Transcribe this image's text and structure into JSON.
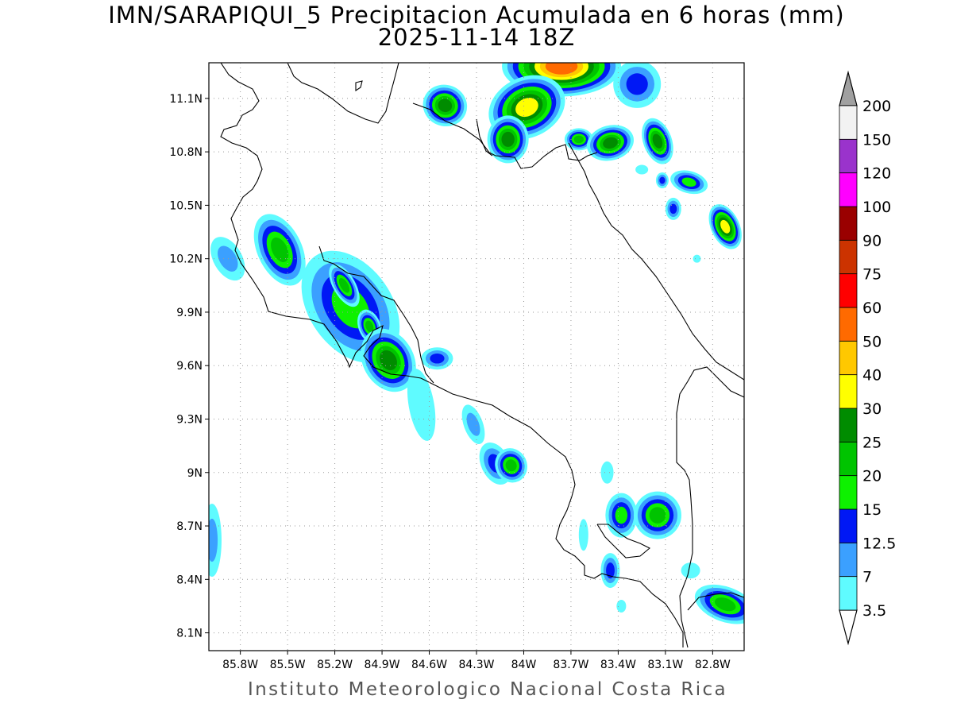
{
  "title": {
    "line1": "IMN/SARAPIQUI_5 Precipitacion Acumulada en 6 horas (mm)",
    "line2": "2025-11-14 18Z"
  },
  "footer": "Instituto Meteorologico Nacional Costa Rica",
  "map": {
    "projection": "lat-lon",
    "lon_range": [
      -86.0,
      -82.6
    ],
    "lat_range": [
      8.0,
      11.3
    ],
    "grid": "dotted",
    "lat_ticks": [
      {
        "value": 11.1,
        "label": "11.1N"
      },
      {
        "value": 10.8,
        "label": "10.8N"
      },
      {
        "value": 10.5,
        "label": "10.5N"
      },
      {
        "value": 10.2,
        "label": "10.2N"
      },
      {
        "value": 9.9,
        "label": "9.9N"
      },
      {
        "value": 9.6,
        "label": "9.6N"
      },
      {
        "value": 9.3,
        "label": "9.3N"
      },
      {
        "value": 9.0,
        "label": "9N"
      },
      {
        "value": 8.7,
        "label": "8.7N"
      },
      {
        "value": 8.4,
        "label": "8.4N"
      },
      {
        "value": 8.1,
        "label": "8.1N"
      }
    ],
    "lon_ticks": [
      {
        "value": -85.8,
        "label": "85.8W"
      },
      {
        "value": -85.5,
        "label": "85.5W"
      },
      {
        "value": -85.2,
        "label": "85.2W"
      },
      {
        "value": -84.9,
        "label": "84.9W"
      },
      {
        "value": -84.6,
        "label": "84.6W"
      },
      {
        "value": -84.3,
        "label": "84.3W"
      },
      {
        "value": -84.0,
        "label": "84W"
      },
      {
        "value": -83.7,
        "label": "83.7W"
      },
      {
        "value": -83.4,
        "label": "83.4W"
      },
      {
        "value": -83.1,
        "label": "83.1W"
      },
      {
        "value": -82.8,
        "label": "82.8W"
      }
    ]
  },
  "colorbar": {
    "units": "mm",
    "extend": "both",
    "under_color": "#ffffff",
    "over_color": "#a0a0a0",
    "bins": [
      {
        "label": "3.5",
        "color": "#5ffbff"
      },
      {
        "label": "7",
        "color": "#3ba0ff"
      },
      {
        "label": "12.5",
        "color": "#0018f5"
      },
      {
        "label": "15",
        "color": "#0ef100"
      },
      {
        "label": "20",
        "color": "#00c400"
      },
      {
        "label": "25",
        "color": "#008c00"
      },
      {
        "label": "30",
        "color": "#ffff00"
      },
      {
        "label": "40",
        "color": "#ffc800"
      },
      {
        "label": "50",
        "color": "#ff6a00"
      },
      {
        "label": "60",
        "color": "#ff0000"
      },
      {
        "label": "75",
        "color": "#cc3300"
      },
      {
        "label": "90",
        "color": "#9a0000"
      },
      {
        "label": "100",
        "color": "#ff00ff"
      },
      {
        "label": "120",
        "color": "#9a33cc"
      },
      {
        "label": "150",
        "color": "#f2f2f2"
      },
      {
        "label": "200",
        "color": null
      }
    ]
  },
  "precip_cells": [
    {
      "lon": -83.76,
      "lat": 11.28,
      "rx": 75,
      "ry": 38,
      "rot": 0,
      "max_level": 9
    },
    {
      "lon": -83.98,
      "lat": 11.05,
      "rx": 50,
      "ry": 38,
      "rot": -25,
      "max_level": 7
    },
    {
      "lon": -84.5,
      "lat": 11.06,
      "rx": 28,
      "ry": 26,
      "rot": 20,
      "max_level": 6
    },
    {
      "lon": -84.1,
      "lat": 10.87,
      "rx": 26,
      "ry": 30,
      "rot": 0,
      "max_level": 6
    },
    {
      "lon": -83.65,
      "lat": 10.87,
      "rx": 18,
      "ry": 14,
      "rot": 0,
      "max_level": 5
    },
    {
      "lon": -83.45,
      "lat": 10.85,
      "rx": 30,
      "ry": 22,
      "rot": -15,
      "max_level": 6
    },
    {
      "lon": -83.15,
      "lat": 10.86,
      "rx": 18,
      "ry": 30,
      "rot": -20,
      "max_level": 6
    },
    {
      "lon": -83.28,
      "lat": 11.18,
      "rx": 30,
      "ry": 30,
      "rot": 0,
      "max_level": 3
    },
    {
      "lon": -82.95,
      "lat": 10.63,
      "rx": 24,
      "ry": 14,
      "rot": 15,
      "max_level": 4
    },
    {
      "lon": -83.05,
      "lat": 10.48,
      "rx": 10,
      "ry": 14,
      "rot": 0,
      "max_level": 3
    },
    {
      "lon": -83.12,
      "lat": 10.64,
      "rx": 8,
      "ry": 10,
      "rot": 0,
      "max_level": 3
    },
    {
      "lon": -82.72,
      "lat": 10.38,
      "rx": 18,
      "ry": 30,
      "rot": -25,
      "max_level": 7
    },
    {
      "lon": -85.55,
      "lat": 10.25,
      "rx": 28,
      "ry": 48,
      "rot": -25,
      "max_level": 5
    },
    {
      "lon": -85.88,
      "lat": 10.2,
      "rx": 18,
      "ry": 30,
      "rot": -30,
      "max_level": 2
    },
    {
      "lon": -85.1,
      "lat": 9.93,
      "rx": 52,
      "ry": 78,
      "rot": -35,
      "max_level": 4
    },
    {
      "lon": -85.14,
      "lat": 10.05,
      "rx": 14,
      "ry": 30,
      "rot": -30,
      "max_level": 5
    },
    {
      "lon": -84.98,
      "lat": 9.82,
      "rx": 14,
      "ry": 22,
      "rot": -20,
      "max_level": 5
    },
    {
      "lon": -84.86,
      "lat": 9.63,
      "rx": 32,
      "ry": 42,
      "rot": -30,
      "max_level": 6
    },
    {
      "lon": -84.55,
      "lat": 9.64,
      "rx": 20,
      "ry": 14,
      "rot": 0,
      "max_level": 3
    },
    {
      "lon": -84.65,
      "lat": 9.38,
      "rx": 16,
      "ry": 46,
      "rot": -10,
      "max_level": 1
    },
    {
      "lon": -84.32,
      "lat": 9.27,
      "rx": 12,
      "ry": 26,
      "rot": -20,
      "max_level": 2
    },
    {
      "lon": -84.18,
      "lat": 9.05,
      "rx": 18,
      "ry": 28,
      "rot": -25,
      "max_level": 3
    },
    {
      "lon": -84.08,
      "lat": 9.04,
      "rx": 20,
      "ry": 22,
      "rot": -25,
      "max_level": 5
    },
    {
      "lon": -83.38,
      "lat": 8.76,
      "rx": 20,
      "ry": 28,
      "rot": 0,
      "max_level": 4
    },
    {
      "lon": -83.15,
      "lat": 8.76,
      "rx": 30,
      "ry": 30,
      "rot": 0,
      "max_level": 5
    },
    {
      "lon": -83.45,
      "lat": 8.45,
      "rx": 12,
      "ry": 22,
      "rot": 0,
      "max_level": 3
    },
    {
      "lon": -85.98,
      "lat": 8.62,
      "rx": 12,
      "ry": 46,
      "rot": 0,
      "max_level": 2
    },
    {
      "lon": -82.72,
      "lat": 8.26,
      "rx": 40,
      "ry": 22,
      "rot": 20,
      "max_level": 5
    },
    {
      "lon": -82.94,
      "lat": 8.45,
      "rx": 12,
      "ry": 10,
      "rot": 0,
      "max_level": 1
    },
    {
      "lon": -83.62,
      "lat": 8.65,
      "rx": 6,
      "ry": 20,
      "rot": 0,
      "max_level": 1
    },
    {
      "lon": -83.47,
      "lat": 9.0,
      "rx": 8,
      "ry": 14,
      "rot": 0,
      "max_level": 1
    },
    {
      "lon": -83.38,
      "lat": 8.25,
      "rx": 6,
      "ry": 8,
      "rot": 0,
      "max_level": 1
    },
    {
      "lon": -82.9,
      "lat": 10.2,
      "rx": 5,
      "ry": 5,
      "rot": 0,
      "max_level": 1
    },
    {
      "lon": -83.25,
      "lat": 10.7,
      "rx": 8,
      "ry": 6,
      "rot": 0,
      "max_level": 1
    }
  ]
}
